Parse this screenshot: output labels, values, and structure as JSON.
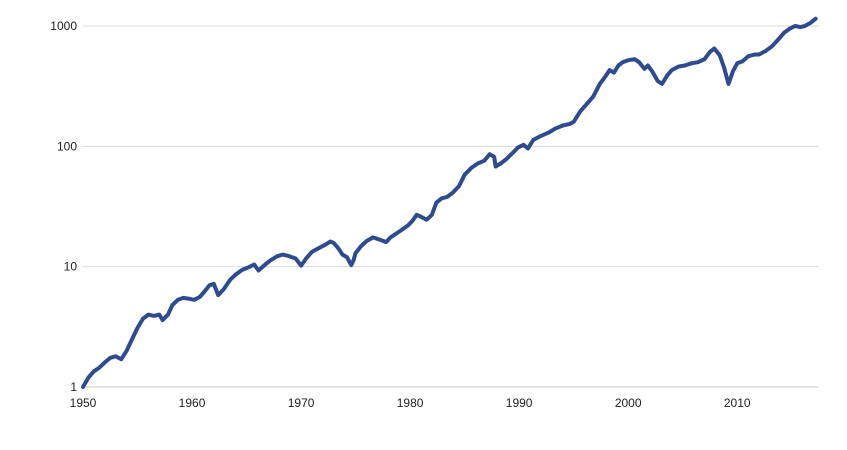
{
  "chart_data": {
    "type": "line",
    "title": "",
    "xlabel": "",
    "ylabel": "",
    "y_scale": "log",
    "xlim": [
      1950,
      2017.5
    ],
    "ylim": [
      1,
      1000
    ],
    "y_ticks": [
      1,
      10,
      100,
      1000
    ],
    "y_tick_labels": [
      "1",
      "10",
      "100",
      "1000"
    ],
    "x_ticks": [
      1950,
      1960,
      1970,
      1980,
      1990,
      2000,
      2010
    ],
    "x_tick_labels": [
      "1950",
      "1960",
      "1970",
      "1980",
      "1990",
      "2000",
      "2010"
    ],
    "grid": "horizontal",
    "legend": "none",
    "line_color": "#2e4b8f",
    "series": [
      {
        "x": [
          1950.0,
          1950.5,
          1951.0,
          1951.5,
          1952.0,
          1952.5,
          1953.0,
          1953.5,
          1954.0,
          1954.5,
          1955.0,
          1955.5,
          1956.0,
          1956.5,
          1957.0,
          1957.3,
          1957.8,
          1958.2,
          1958.7,
          1959.2,
          1959.8,
          1960.2,
          1960.7,
          1961.2,
          1961.6,
          1962.0,
          1962.4,
          1962.9,
          1963.5,
          1964.0,
          1964.6,
          1965.2,
          1965.7,
          1966.1,
          1966.7,
          1967.2,
          1967.8,
          1968.3,
          1968.8,
          1969.5,
          1970.0,
          1970.5,
          1971.0,
          1971.6,
          1972.2,
          1972.7,
          1973.0,
          1973.4,
          1973.8,
          1974.2,
          1974.6,
          1974.8,
          1975.0,
          1975.5,
          1976.0,
          1976.6,
          1977.2,
          1977.8,
          1978.2,
          1978.8,
          1979.3,
          1979.8,
          1980.2,
          1980.6,
          1981.0,
          1981.5,
          1982.0,
          1982.4,
          1982.9,
          1983.4,
          1983.9,
          1984.5,
          1985.0,
          1985.6,
          1986.2,
          1986.8,
          1987.3,
          1987.7,
          1987.85,
          1988.3,
          1988.8,
          1989.4,
          1989.9,
          1990.4,
          1990.8,
          1991.3,
          1992.0,
          1992.7,
          1993.3,
          1994.0,
          1994.6,
          1995.0,
          1995.6,
          1996.2,
          1996.8,
          1997.4,
          1997.9,
          1998.3,
          1998.7,
          1999.1,
          1999.5,
          2000.0,
          2000.6,
          2001.0,
          2001.5,
          2001.8,
          2002.2,
          2002.7,
          2003.1,
          2003.6,
          2004.0,
          2004.6,
          2005.2,
          2005.8,
          2006.4,
          2007.0,
          2007.5,
          2007.9,
          2008.4,
          2008.8,
          2009.2,
          2009.6,
          2010.0,
          2010.5,
          2011.0,
          2011.6,
          2012.0,
          2012.6,
          2013.2,
          2013.8,
          2014.3,
          2014.8,
          2015.3,
          2015.8,
          2016.2,
          2016.7,
          2017.2
        ],
        "y": [
          1.0,
          1.2,
          1.35,
          1.45,
          1.6,
          1.75,
          1.8,
          1.7,
          2.0,
          2.5,
          3.1,
          3.7,
          4.0,
          3.9,
          4.0,
          3.6,
          4.0,
          4.8,
          5.3,
          5.5,
          5.4,
          5.3,
          5.6,
          6.3,
          7.0,
          7.2,
          5.8,
          6.5,
          7.8,
          8.6,
          9.4,
          9.9,
          10.4,
          9.3,
          10.4,
          11.3,
          12.2,
          12.6,
          12.3,
          11.7,
          10.2,
          11.8,
          13.3,
          14.2,
          15.2,
          16.2,
          15.7,
          14.3,
          12.6,
          12.0,
          10.3,
          11.2,
          13.0,
          14.8,
          16.3,
          17.5,
          16.8,
          16.0,
          17.5,
          19.0,
          20.5,
          22.0,
          24.0,
          27.0,
          26.0,
          24.5,
          27.0,
          34.0,
          37.0,
          38.0,
          41.0,
          47.0,
          58.0,
          66.0,
          72.0,
          76.0,
          86.0,
          82.0,
          68.0,
          72.0,
          78.0,
          88.0,
          98.0,
          103.0,
          96.0,
          113.0,
          122.0,
          130.0,
          140.0,
          149.0,
          153.0,
          160.0,
          195.0,
          225.0,
          260.0,
          330.0,
          380.0,
          430.0,
          410.0,
          470.0,
          500.0,
          520.0,
          530.0,
          500.0,
          440.0,
          470.0,
          420.0,
          350.0,
          330.0,
          390.0,
          430.0,
          460.0,
          470.0,
          490.0,
          500.0,
          530.0,
          610.0,
          650.0,
          570.0,
          450.0,
          330.0,
          420.0,
          490.0,
          510.0,
          560.0,
          580.0,
          580.0,
          620.0,
          680.0,
          780.0,
          880.0,
          950.0,
          1000.0,
          980.0,
          1000.0,
          1060.0,
          1150.0
        ]
      }
    ]
  }
}
